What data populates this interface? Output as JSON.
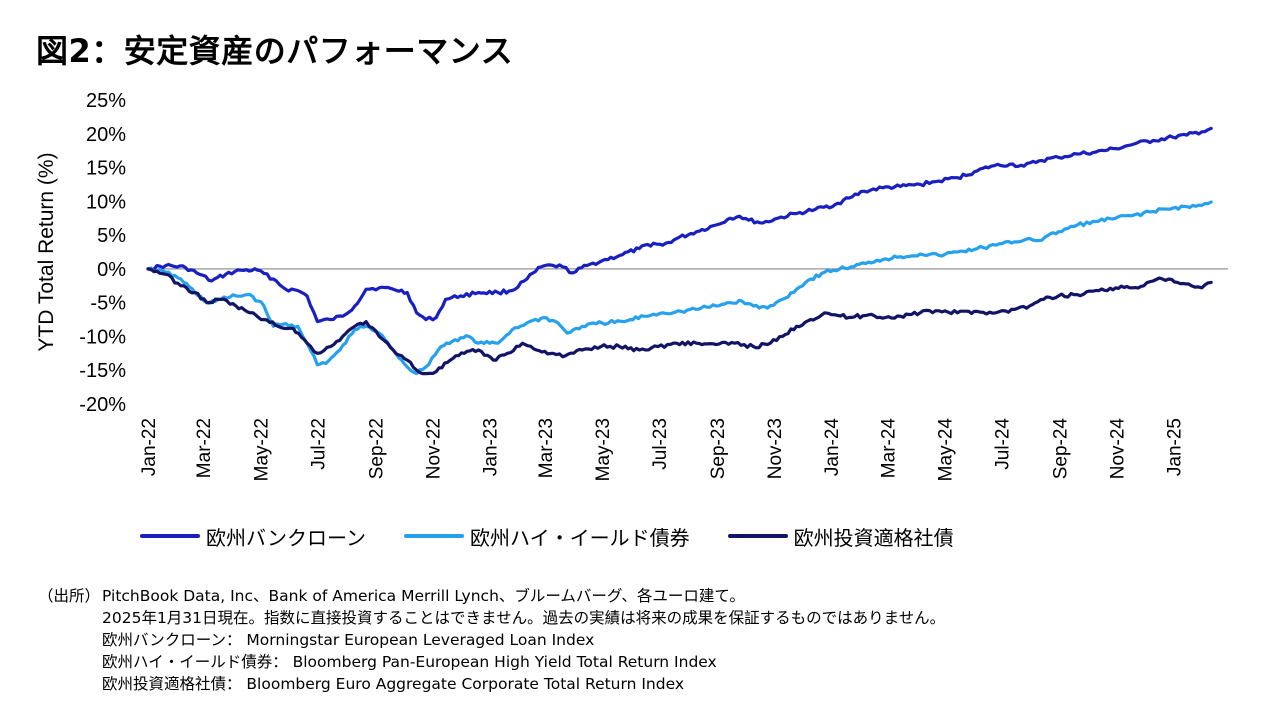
{
  "title": "図2：安定資産のパフォーマンス",
  "chart_data": {
    "type": "line",
    "ylabel": "YTD Total Return (%)",
    "xlabel": "",
    "ylim": [
      -20,
      25
    ],
    "y_ticks": [
      25,
      20,
      15,
      10,
      5,
      0,
      -5,
      -10,
      -15,
      -20
    ],
    "y_tick_labels": [
      "25%",
      "20%",
      "15%",
      "10%",
      "5%",
      "0%",
      "-5%",
      "-10%",
      "-15%",
      "-20%"
    ],
    "x_range": [
      "2022-01-01",
      "2025-02-28"
    ],
    "x_tick_labels": [
      "Jan-22",
      "Mar-22",
      "May-22",
      "Jul-22",
      "Sep-22",
      "Nov-22",
      "Jan-23",
      "Mar-23",
      "May-23",
      "Jul-23",
      "Sep-23",
      "Nov-23",
      "Jan-24",
      "Mar-24",
      "May-24",
      "Jul-24",
      "Sep-24",
      "Nov-24",
      "Jan-25"
    ],
    "x_tick_dates": [
      "2022-01-01",
      "2022-03-01",
      "2022-05-01",
      "2022-07-01",
      "2022-09-01",
      "2022-11-01",
      "2023-01-01",
      "2023-03-01",
      "2023-05-01",
      "2023-07-01",
      "2023-09-01",
      "2023-11-01",
      "2024-01-01",
      "2024-03-01",
      "2024-05-01",
      "2024-07-01",
      "2024-09-01",
      "2024-11-01",
      "2025-01-01"
    ],
    "grid": "horizontal zero line only",
    "legend_position": "bottom",
    "series": [
      {
        "name": "欧州バンクローン",
        "color": "#1a1fc0",
        "points": [
          [
            "2022-01-01",
            0
          ],
          [
            "2022-01-20",
            0.5
          ],
          [
            "2022-02-10",
            0.2
          ],
          [
            "2022-02-25",
            -0.8
          ],
          [
            "2022-03-10",
            -1.8
          ],
          [
            "2022-03-25",
            -0.8
          ],
          [
            "2022-04-10",
            -0.2
          ],
          [
            "2022-04-28",
            -0.2
          ],
          [
            "2022-05-15",
            -1.5
          ],
          [
            "2022-05-28",
            -3
          ],
          [
            "2022-06-10",
            -3.2
          ],
          [
            "2022-06-20",
            -4
          ],
          [
            "2022-07-01",
            -7.8
          ],
          [
            "2022-07-15",
            -7.5
          ],
          [
            "2022-07-28",
            -7
          ],
          [
            "2022-08-10",
            -5.5
          ],
          [
            "2022-08-22",
            -3
          ],
          [
            "2022-09-05",
            -2.8
          ],
          [
            "2022-09-20",
            -3
          ],
          [
            "2022-10-05",
            -3.5
          ],
          [
            "2022-10-15",
            -6.5
          ],
          [
            "2022-10-25",
            -7.5
          ],
          [
            "2022-11-05",
            -7.2
          ],
          [
            "2022-11-15",
            -4.5
          ],
          [
            "2022-12-01",
            -4
          ],
          [
            "2022-12-20",
            -3.5
          ],
          [
            "2023-01-10",
            -3.5
          ],
          [
            "2023-01-25",
            -3.2
          ],
          [
            "2023-02-10",
            -1.5
          ],
          [
            "2023-02-25",
            0.3
          ],
          [
            "2023-03-10",
            0.5
          ],
          [
            "2023-03-20",
            0.3
          ],
          [
            "2023-03-31",
            -0.6
          ],
          [
            "2023-04-15",
            0.5
          ],
          [
            "2023-05-01",
            1.2
          ],
          [
            "2023-05-20",
            2
          ],
          [
            "2023-06-10",
            3
          ],
          [
            "2023-06-25",
            3.8
          ],
          [
            "2023-07-05",
            3.5
          ],
          [
            "2023-07-20",
            4.5
          ],
          [
            "2023-08-10",
            5.5
          ],
          [
            "2023-08-31",
            6.5
          ],
          [
            "2023-09-15",
            7.5
          ],
          [
            "2023-09-25",
            7.8
          ],
          [
            "2023-10-05",
            7.2
          ],
          [
            "2023-10-20",
            6.8
          ],
          [
            "2023-11-05",
            7.5
          ],
          [
            "2023-11-25",
            8.2
          ],
          [
            "2023-12-15",
            8.8
          ],
          [
            "2024-01-05",
            9.5
          ],
          [
            "2024-01-20",
            10.5
          ],
          [
            "2024-02-05",
            11.5
          ],
          [
            "2024-02-25",
            12
          ],
          [
            "2024-03-15",
            12.2
          ],
          [
            "2024-04-05",
            12.5
          ],
          [
            "2024-04-25",
            13
          ],
          [
            "2024-05-15",
            13.5
          ],
          [
            "2024-06-05",
            14.5
          ],
          [
            "2024-06-20",
            15.2
          ],
          [
            "2024-07-10",
            15.5
          ],
          [
            "2024-07-25",
            15.2
          ],
          [
            "2024-08-10",
            16
          ],
          [
            "2024-08-31",
            16.5
          ],
          [
            "2024-09-20",
            17
          ],
          [
            "2024-10-10",
            17.3
          ],
          [
            "2024-10-31",
            17.8
          ],
          [
            "2024-11-20",
            18.5
          ],
          [
            "2024-12-10",
            19
          ],
          [
            "2024-12-31",
            19.5
          ],
          [
            "2025-01-15",
            19.8
          ],
          [
            "2025-01-31",
            20.3
          ],
          [
            "2025-02-10",
            20.8
          ]
        ]
      },
      {
        "name": "欧州ハイ・イールド債券",
        "color": "#27a0ee",
        "points": [
          [
            "2022-01-01",
            0
          ],
          [
            "2022-01-20",
            -0.5
          ],
          [
            "2022-02-05",
            -1.5
          ],
          [
            "2022-02-20",
            -3.5
          ],
          [
            "2022-03-05",
            -5
          ],
          [
            "2022-03-20",
            -4.5
          ],
          [
            "2022-04-05",
            -4
          ],
          [
            "2022-04-20",
            -3.8
          ],
          [
            "2022-05-05",
            -5.5
          ],
          [
            "2022-05-15",
            -8.5
          ],
          [
            "2022-05-25",
            -8.2
          ],
          [
            "2022-06-10",
            -8.5
          ],
          [
            "2022-06-20",
            -11
          ],
          [
            "2022-07-01",
            -14.2
          ],
          [
            "2022-07-10",
            -14
          ],
          [
            "2022-07-25",
            -12
          ],
          [
            "2022-08-10",
            -9
          ],
          [
            "2022-08-22",
            -8.5
          ],
          [
            "2022-09-05",
            -9.5
          ],
          [
            "2022-09-20",
            -12
          ],
          [
            "2022-10-05",
            -14.5
          ],
          [
            "2022-10-15",
            -15.5
          ],
          [
            "2022-10-25",
            -14.5
          ],
          [
            "2022-11-10",
            -11.5
          ],
          [
            "2022-11-25",
            -10.5
          ],
          [
            "2022-12-10",
            -10
          ],
          [
            "2022-12-20",
            -11
          ],
          [
            "2023-01-10",
            -11
          ],
          [
            "2023-01-25",
            -9
          ],
          [
            "2023-02-10",
            -8
          ],
          [
            "2023-02-28",
            -7.2
          ],
          [
            "2023-03-15",
            -8
          ],
          [
            "2023-03-25",
            -9.5
          ],
          [
            "2023-04-10",
            -8.5
          ],
          [
            "2023-05-01",
            -8
          ],
          [
            "2023-05-25",
            -7.8
          ],
          [
            "2023-06-15",
            -7
          ],
          [
            "2023-07-05",
            -6.5
          ],
          [
            "2023-07-25",
            -6.3
          ],
          [
            "2023-08-15",
            -5.8
          ],
          [
            "2023-08-31",
            -5.5
          ],
          [
            "2023-09-15",
            -5
          ],
          [
            "2023-09-28",
            -4.8
          ],
          [
            "2023-10-10",
            -5.5
          ],
          [
            "2023-10-25",
            -5.8
          ],
          [
            "2023-11-10",
            -4.5
          ],
          [
            "2023-11-25",
            -3
          ],
          [
            "2023-12-10",
            -1.5
          ],
          [
            "2023-12-25",
            -0.5
          ],
          [
            "2024-01-10",
            0
          ],
          [
            "2024-01-25",
            0.3
          ],
          [
            "2024-02-10",
            1
          ],
          [
            "2024-02-28",
            1.5
          ],
          [
            "2024-03-15",
            1.8
          ],
          [
            "2024-04-05",
            2.2
          ],
          [
            "2024-04-25",
            2
          ],
          [
            "2024-05-15",
            2.5
          ],
          [
            "2024-06-05",
            3
          ],
          [
            "2024-06-25",
            3.5
          ],
          [
            "2024-07-15",
            4
          ],
          [
            "2024-07-31",
            4.5
          ],
          [
            "2024-08-10",
            4.2
          ],
          [
            "2024-08-31",
            5.5
          ],
          [
            "2024-09-20",
            6.5
          ],
          [
            "2024-10-10",
            7
          ],
          [
            "2024-10-31",
            7.5
          ],
          [
            "2024-11-20",
            8
          ],
          [
            "2024-12-10",
            8.5
          ],
          [
            "2024-12-31",
            9
          ],
          [
            "2025-01-15",
            9.2
          ],
          [
            "2025-01-31",
            9.4
          ],
          [
            "2025-02-10",
            9.9
          ]
        ]
      },
      {
        "name": "欧州投資適格社債",
        "color": "#121466",
        "points": [
          [
            "2022-01-01",
            0
          ],
          [
            "2022-01-20",
            -0.8
          ],
          [
            "2022-02-05",
            -2.5
          ],
          [
            "2022-02-20",
            -3.5
          ],
          [
            "2022-03-05",
            -5
          ],
          [
            "2022-03-20",
            -4.5
          ],
          [
            "2022-04-05",
            -5.5
          ],
          [
            "2022-04-20",
            -6.5
          ],
          [
            "2022-05-05",
            -7.5
          ],
          [
            "2022-05-20",
            -8.5
          ],
          [
            "2022-06-05",
            -8.8
          ],
          [
            "2022-06-20",
            -11
          ],
          [
            "2022-07-01",
            -12.5
          ],
          [
            "2022-07-15",
            -11.5
          ],
          [
            "2022-07-28",
            -10
          ],
          [
            "2022-08-10",
            -8.5
          ],
          [
            "2022-08-22",
            -7.8
          ],
          [
            "2022-09-05",
            -10
          ],
          [
            "2022-09-20",
            -12
          ],
          [
            "2022-10-05",
            -13.5
          ],
          [
            "2022-10-15",
            -15
          ],
          [
            "2022-10-25",
            -15.5
          ],
          [
            "2022-11-05",
            -15.2
          ],
          [
            "2022-11-20",
            -13.5
          ],
          [
            "2022-12-05",
            -12.5
          ],
          [
            "2022-12-20",
            -12
          ],
          [
            "2023-01-05",
            -13.5
          ],
          [
            "2023-01-20",
            -12.5
          ],
          [
            "2023-02-05",
            -11
          ],
          [
            "2023-02-20",
            -12
          ],
          [
            "2023-03-10",
            -12.5
          ],
          [
            "2023-03-20",
            -13
          ],
          [
            "2023-04-10",
            -12
          ],
          [
            "2023-04-30",
            -11.5
          ],
          [
            "2023-05-20",
            -11.5
          ],
          [
            "2023-06-10",
            -12
          ],
          [
            "2023-06-30",
            -11.5
          ],
          [
            "2023-07-20",
            -11
          ],
          [
            "2023-08-10",
            -11
          ],
          [
            "2023-08-31",
            -11.2
          ],
          [
            "2023-09-20",
            -11
          ],
          [
            "2023-10-10",
            -11.5
          ],
          [
            "2023-10-25",
            -11.2
          ],
          [
            "2023-11-10",
            -10
          ],
          [
            "2023-11-25",
            -8.5
          ],
          [
            "2023-12-10",
            -7.5
          ],
          [
            "2023-12-25",
            -6.5
          ],
          [
            "2024-01-05",
            -6.8
          ],
          [
            "2024-01-20",
            -7.2
          ],
          [
            "2024-02-10",
            -6.8
          ],
          [
            "2024-02-28",
            -7.2
          ],
          [
            "2024-03-15",
            -7
          ],
          [
            "2024-04-05",
            -6.5
          ],
          [
            "2024-04-25",
            -6.2
          ],
          [
            "2024-05-15",
            -6.5
          ],
          [
            "2024-06-05",
            -6.3
          ],
          [
            "2024-06-25",
            -6.5
          ],
          [
            "2024-07-15",
            -6
          ],
          [
            "2024-07-31",
            -5.5
          ],
          [
            "2024-08-15",
            -4.5
          ],
          [
            "2024-08-31",
            -4
          ],
          [
            "2024-09-20",
            -3.8
          ],
          [
            "2024-10-10",
            -3.2
          ],
          [
            "2024-10-31",
            -2.8
          ],
          [
            "2024-11-15",
            -2.8
          ],
          [
            "2024-11-30",
            -2.5
          ],
          [
            "2024-12-10",
            -1.8
          ],
          [
            "2024-12-20",
            -1.5
          ],
          [
            "2025-01-05",
            -2
          ],
          [
            "2025-01-20",
            -2.5
          ],
          [
            "2025-01-31",
            -2.8
          ],
          [
            "2025-02-10",
            -2
          ]
        ]
      }
    ]
  },
  "legend": [
    "欧州バンクローン",
    "欧州ハイ・イールド債券",
    "欧州投資適格社債"
  ],
  "notes": {
    "label": "（出所）",
    "lines": [
      "PitchBook Data, Inc、Bank of America Merrill Lynch、ブルームバーグ、各ユーロ建て。",
      "2025年1月31日現在。指数に直接投資することはできません。過去の実績は将来の成果を保証するものではありません。",
      "欧州バンクローン： Morningstar European Leveraged Loan Index",
      "欧州ハイ・イールド債券： Bloomberg Pan-European High Yield Total Return Index",
      "欧州投資適格社債： Bloomberg Euro Aggregate Corporate Total Return Index"
    ]
  }
}
